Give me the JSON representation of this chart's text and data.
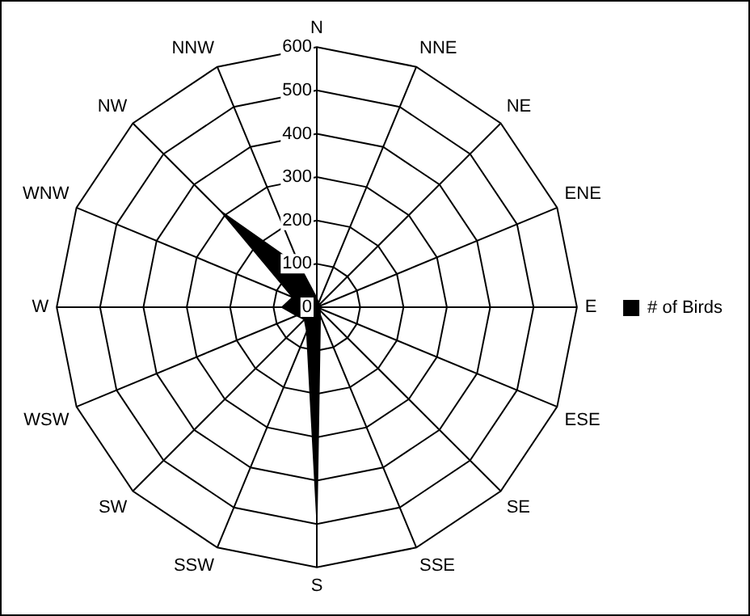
{
  "chart_data": {
    "type": "radar",
    "categories": [
      "N",
      "NNE",
      "NE",
      "ENE",
      "E",
      "ESE",
      "SE",
      "SSE",
      "S",
      "SSW",
      "SW",
      "WSW",
      "W",
      "WNW",
      "NW",
      "NNW"
    ],
    "series": [
      {
        "name": "# of Birds",
        "color": "#000000",
        "values": [
          20,
          10,
          10,
          5,
          5,
          5,
          10,
          20,
          480,
          60,
          40,
          50,
          80,
          60,
          310,
          100
        ]
      }
    ],
    "ylim": [
      0,
      600
    ],
    "yticks": [
      0,
      100,
      200,
      300,
      400,
      500,
      600
    ],
    "grid": true,
    "legend": "right",
    "marker": "none"
  }
}
